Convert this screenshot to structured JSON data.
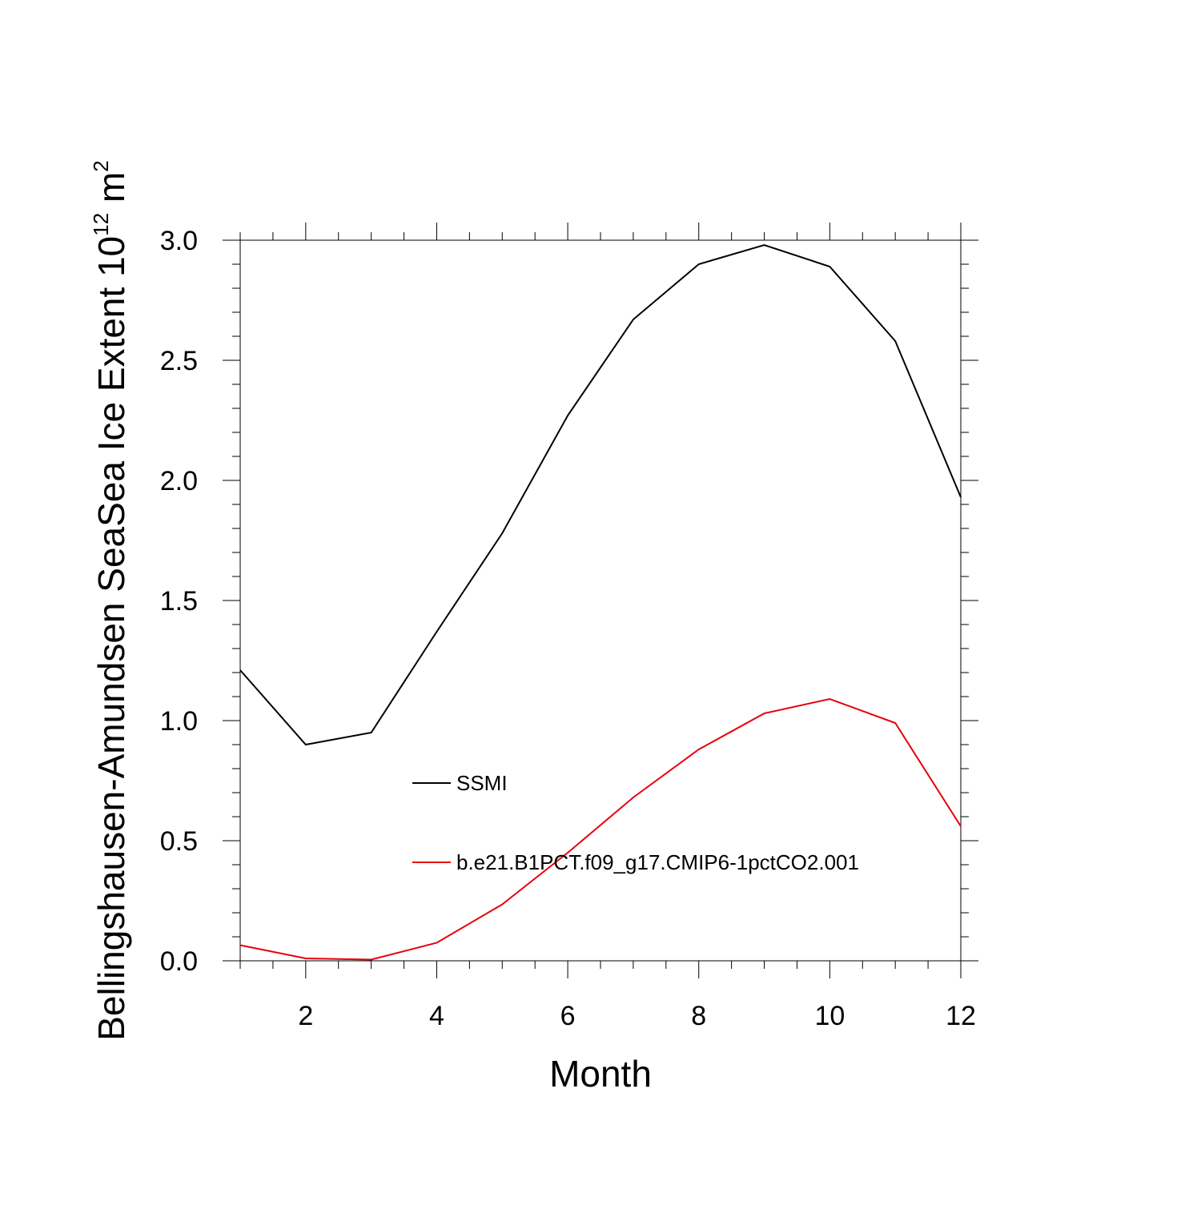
{
  "chart_data": {
    "type": "line",
    "title": "",
    "xlabel": "Month",
    "ylabel": "Bellingshausen-Amundsen SeaSea Ice Extent 10^12 m^2",
    "ylabel_parts": {
      "main": "Bellingshausen-Amundsen SeaSea Ice Extent 10",
      "exponent": "12",
      "unit": " m",
      "unit_exponent": "2"
    },
    "xlim": [
      1,
      12
    ],
    "ylim": [
      0,
      3
    ],
    "x_ticks": [
      2,
      4,
      6,
      8,
      10,
      12
    ],
    "x_tick_labels": [
      "2",
      "4",
      "6",
      "8",
      "10",
      "12"
    ],
    "y_ticks": [
      0,
      0.5,
      1,
      1.5,
      2,
      2.5,
      3
    ],
    "y_tick_labels": [
      "0.0",
      "0.5",
      "1.0",
      "1.5",
      "2.0",
      "2.5",
      "3.0"
    ],
    "x": [
      1,
      2,
      3,
      4,
      5,
      6,
      7,
      8,
      9,
      10,
      11,
      12
    ],
    "series": [
      {
        "name": "SSMI",
        "color": "#000000",
        "values": [
          1.21,
          0.9,
          0.95,
          1.37,
          1.78,
          2.27,
          2.67,
          2.9,
          2.98,
          2.89,
          2.58,
          1.93
        ]
      },
      {
        "name": "b.e21.B1PCT.f09_g17.CMIP6-1pctCO2.001",
        "color": "#e8000b",
        "values": [
          0.065,
          0.01,
          0.005,
          0.075,
          0.235,
          0.45,
          0.68,
          0.88,
          1.03,
          1.09,
          0.99,
          0.56
        ]
      }
    ],
    "legend_position": "inside-lower-center",
    "grid": false
  }
}
